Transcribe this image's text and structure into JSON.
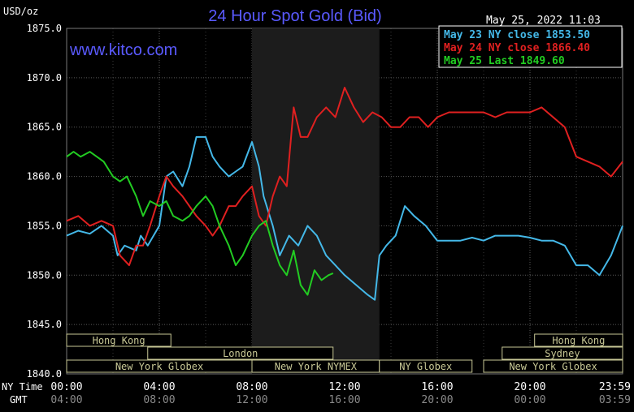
{
  "header": {
    "units": "USD/oz",
    "title": "24 Hour Spot Gold (Bid)",
    "timestamp": "May 25, 2022 11:03",
    "watermark": "www.kitco.com"
  },
  "legend": [
    {
      "label": "May 23 NY close 1853.50",
      "color": "#44b8e8"
    },
    {
      "label": "May 24 NY close 1866.40",
      "color": "#e02020"
    },
    {
      "label": "May 25 Last 1849.60",
      "color": "#22cc22"
    }
  ],
  "axis_rows": {
    "ny_label": "NY Time",
    "gmt_label": "GMT"
  },
  "sessions": [
    {
      "label": "Hong Kong",
      "row": 0,
      "start": 0.0,
      "end": 4.5
    },
    {
      "label": "Hong Kong",
      "row": 0,
      "start": 20.2,
      "end": 24.0
    },
    {
      "label": "London",
      "row": 1,
      "start": 3.5,
      "end": 11.5
    },
    {
      "label": "Sydney",
      "row": 1,
      "start": 18.8,
      "end": 24.0
    },
    {
      "label": "New York Globex",
      "row": 2,
      "start": 0.0,
      "end": 8.0
    },
    {
      "label": "New York NYMEX",
      "row": 2,
      "start": 8.0,
      "end": 13.5
    },
    {
      "label": "NY Globex",
      "row": 2,
      "start": 13.5,
      "end": 17.5
    },
    {
      "label": "New York Globex",
      "row": 2,
      "start": 18.0,
      "end": 24.0
    }
  ],
  "chart_data": {
    "type": "line",
    "title": "24 Hour Spot Gold (Bid)",
    "ylabel": "USD/oz",
    "ylim": [
      1840,
      1875
    ],
    "yticks": [
      "1875.0",
      "1870.0",
      "1865.0",
      "1860.0",
      "1855.0",
      "1850.0",
      "1845.0",
      "1840.0"
    ],
    "xlim": [
      0,
      24
    ],
    "xticks_ny": [
      "00:00",
      "04:00",
      "08:00",
      "12:00",
      "16:00",
      "20:00",
      "23:59"
    ],
    "xticks_gmt": [
      "04:00",
      "08:00",
      "12:00",
      "16:00",
      "20:00",
      "00:00",
      "03:59"
    ],
    "grid": true,
    "shaded_range": [
      8.0,
      13.5
    ],
    "series": [
      {
        "name": "May 23 NY close 1853.50",
        "color": "#44b8e8",
        "x": [
          0,
          0.5,
          1,
          1.5,
          2,
          2.2,
          2.5,
          3,
          3.2,
          3.5,
          4,
          4.3,
          4.6,
          5,
          5.3,
          5.6,
          6,
          6.3,
          6.6,
          7,
          7.3,
          7.6,
          8,
          8.3,
          8.5,
          8.9,
          9.2,
          9.6,
          10,
          10.4,
          10.8,
          11.2,
          11.6,
          12,
          12.5,
          13,
          13.3,
          13.5,
          13.8,
          14.2,
          14.6,
          15,
          15.5,
          16,
          16.5,
          17,
          17.5,
          18,
          18.5,
          19,
          19.5,
          20,
          20.5,
          21,
          21.5,
          22,
          22.5,
          23,
          23.5,
          24
        ],
        "y": [
          1854,
          1854.5,
          1854.2,
          1855,
          1854,
          1852,
          1853,
          1852.5,
          1854,
          1853,
          1855,
          1860,
          1860.5,
          1859,
          1861,
          1864,
          1864,
          1862,
          1861,
          1860,
          1860.5,
          1861,
          1863.5,
          1861,
          1858,
          1855,
          1852,
          1854,
          1853,
          1855,
          1854,
          1852,
          1851,
          1850,
          1849,
          1848,
          1847.5,
          1852,
          1853,
          1854,
          1857,
          1856,
          1855,
          1853.5,
          1853.5,
          1853.5,
          1853.8,
          1853.5,
          1854,
          1854,
          1854,
          1853.8,
          1853.5,
          1853.5,
          1853,
          1851,
          1851,
          1850,
          1852,
          1855
        ]
      },
      {
        "name": "May 24 NY close 1866.40",
        "color": "#e02020",
        "x": [
          0,
          0.5,
          1,
          1.5,
          2,
          2.3,
          2.7,
          3,
          3.3,
          3.6,
          4,
          4.3,
          4.6,
          5,
          5.3,
          5.6,
          6,
          6.3,
          6.6,
          7,
          7.3,
          7.6,
          8,
          8.3,
          8.6,
          8.9,
          9.2,
          9.5,
          9.8,
          10.1,
          10.4,
          10.8,
          11.2,
          11.6,
          12,
          12.4,
          12.8,
          13.2,
          13.6,
          14,
          14.4,
          14.8,
          15.2,
          15.6,
          16,
          16.5,
          17,
          17.5,
          18,
          18.5,
          19,
          19.5,
          20,
          20.5,
          21,
          21.5,
          22,
          22.5,
          23,
          23.5,
          24
        ],
        "y": [
          1855.5,
          1856,
          1855,
          1855.5,
          1855,
          1852,
          1851,
          1853,
          1853,
          1855,
          1858,
          1860,
          1859,
          1858,
          1857,
          1856,
          1855,
          1854,
          1855,
          1857,
          1857,
          1858,
          1859,
          1856,
          1855,
          1858,
          1860,
          1859,
          1867,
          1864,
          1864,
          1866,
          1867,
          1866,
          1869,
          1867,
          1865.5,
          1866.5,
          1866,
          1865,
          1865,
          1866,
          1866,
          1865,
          1866,
          1866.5,
          1866.5,
          1866.5,
          1866.5,
          1866,
          1866.5,
          1866.5,
          1866.5,
          1867,
          1866,
          1865,
          1862,
          1861.5,
          1861,
          1860,
          1861.5
        ]
      },
      {
        "name": "May 25 Last 1849.60",
        "color": "#22cc22",
        "x": [
          0,
          0.3,
          0.6,
          1,
          1.3,
          1.6,
          2,
          2.3,
          2.6,
          3,
          3.3,
          3.6,
          4,
          4.3,
          4.6,
          5,
          5.3,
          5.6,
          6,
          6.3,
          6.6,
          7,
          7.3,
          7.6,
          8,
          8.3,
          8.6,
          8.9,
          9.2,
          9.5,
          9.8,
          10.1,
          10.4,
          10.7,
          11,
          11.3,
          11.5
        ],
        "y": [
          1862,
          1862.5,
          1862,
          1862.5,
          1862,
          1861.5,
          1860,
          1859.5,
          1860,
          1858,
          1856,
          1857.5,
          1857,
          1857.5,
          1856,
          1855.5,
          1856,
          1857,
          1858,
          1857,
          1855,
          1853,
          1851,
          1852,
          1854,
          1855,
          1855.5,
          1853,
          1851,
          1850,
          1852.5,
          1849,
          1848,
          1850.5,
          1849.5,
          1850,
          1850.2
        ]
      }
    ]
  }
}
